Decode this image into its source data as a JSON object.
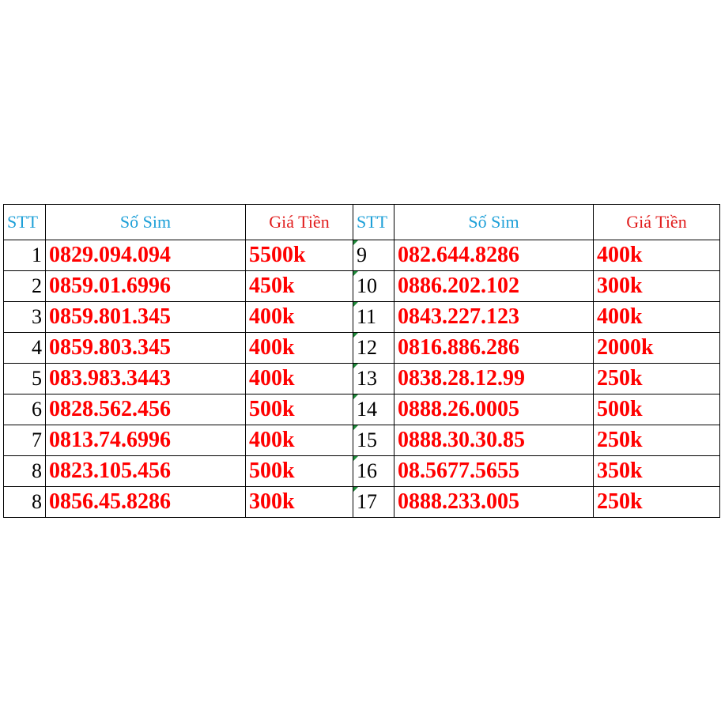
{
  "headers": {
    "stt": "STT",
    "sim": "Số Sim",
    "price": "Giá Tiền"
  },
  "colors": {
    "header_blue": "#1ea0d8",
    "header_red": "#e11d1d",
    "value_red": "#ff0000",
    "cell_marker_green": "#1f8a3a"
  },
  "rows": [
    {
      "left_stt": "1",
      "left_sim": "0829.094.094",
      "left_price": "5500k",
      "right_stt": "9",
      "right_sim": "082.644.8286",
      "right_price": "400k"
    },
    {
      "left_stt": "2",
      "left_sim": "0859.01.6996",
      "left_price": "450k",
      "right_stt": "10",
      "right_sim": "0886.202.102",
      "right_price": "300k"
    },
    {
      "left_stt": "3",
      "left_sim": "0859.801.345",
      "left_price": "400k",
      "right_stt": "11",
      "right_sim": "0843.227.123",
      "right_price": "400k"
    },
    {
      "left_stt": "4",
      "left_sim": "0859.803.345",
      "left_price": "400k",
      "right_stt": "12",
      "right_sim": "0816.886.286",
      "right_price": "2000k"
    },
    {
      "left_stt": "5",
      "left_sim": "083.983.3443",
      "left_price": "400k",
      "right_stt": "13",
      "right_sim": "0838.28.12.99",
      "right_price": "250k"
    },
    {
      "left_stt": "6",
      "left_sim": "0828.562.456",
      "left_price": "500k",
      "right_stt": "14",
      "right_sim": "0888.26.0005",
      "right_price": "500k"
    },
    {
      "left_stt": "7",
      "left_sim": "0813.74.6996",
      "left_price": "400k",
      "right_stt": "15",
      "right_sim": "0888.30.30.85",
      "right_price": "250k"
    },
    {
      "left_stt": "8",
      "left_sim": "0823.105.456",
      "left_price": "500k",
      "right_stt": "16",
      "right_sim": "08.5677.5655",
      "right_price": "350k"
    },
    {
      "left_stt": "8",
      "left_sim": "0856.45.8286",
      "left_price": "300k",
      "right_stt": "17",
      "right_sim": "0888.233.005",
      "right_price": "250k"
    }
  ]
}
